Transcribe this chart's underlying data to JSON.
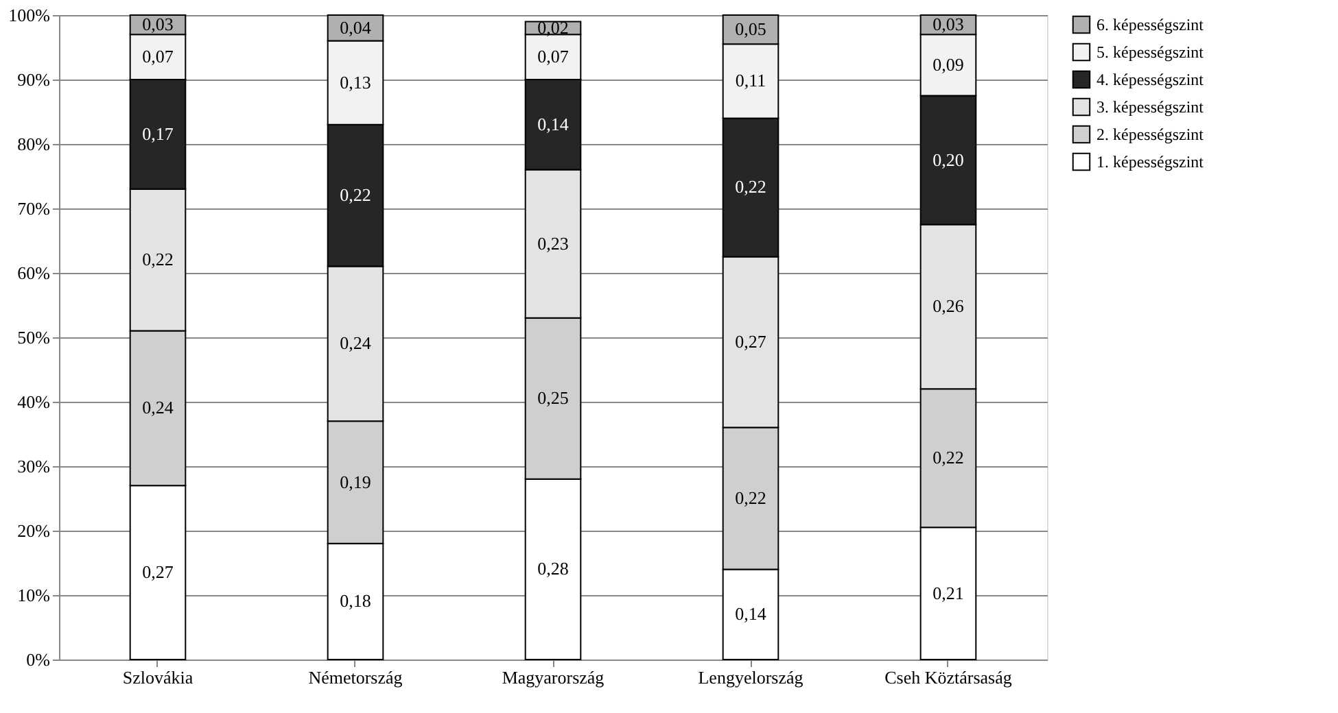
{
  "chart_data": {
    "type": "bar",
    "stacked": true,
    "categories": [
      "Szlovákia",
      "Németország",
      "Magyarország",
      "Lengyelország",
      "Cseh Köztársaság"
    ],
    "series": [
      {
        "name": "1. képességszint",
        "color": "#ffffff",
        "values": [
          0.27,
          0.18,
          0.28,
          0.14,
          0.205
        ],
        "value_labels": [
          "0,27",
          "0,18",
          "0,28",
          "0,14",
          "0,21"
        ]
      },
      {
        "name": "2. képességszint",
        "color": "#cfcfcf",
        "values": [
          0.24,
          0.19,
          0.25,
          0.22,
          0.215
        ],
        "value_labels": [
          "0,24",
          "0,19",
          "0,25",
          "0,22",
          "0,22"
        ]
      },
      {
        "name": "3. képességszint",
        "color": "#e3e3e3",
        "values": [
          0.22,
          0.24,
          0.23,
          0.265,
          0.255
        ],
        "value_labels": [
          "0,22",
          "0,24",
          "0,23",
          "0,27",
          "0,26"
        ]
      },
      {
        "name": "4. képességszint",
        "color": "#262626",
        "values": [
          0.17,
          0.22,
          0.14,
          0.215,
          0.2
        ],
        "value_labels": [
          "0,17",
          "0,22",
          "0,14",
          "0,22",
          "0,20"
        ]
      },
      {
        "name": "5. képességszint",
        "color": "#f2f2f2",
        "values": [
          0.07,
          0.13,
          0.07,
          0.115,
          0.095
        ],
        "value_labels": [
          "0,07",
          "0,13",
          "0,07",
          "0,11",
          "0,09"
        ]
      },
      {
        "name": "6. képességszint",
        "color": "#b0b0b0",
        "values": [
          0.03,
          0.04,
          0.02,
          0.045,
          0.03
        ],
        "value_labels": [
          "0,03",
          "0,04",
          "0,02",
          "0,05",
          "0,03"
        ]
      }
    ],
    "ylim": [
      0,
      1
    ],
    "yticks": [
      {
        "value": 0,
        "label": "0%"
      },
      {
        "value": 0.1,
        "label": "10%"
      },
      {
        "value": 0.2,
        "label": "20%"
      },
      {
        "value": 0.3,
        "label": "30%"
      },
      {
        "value": 0.4,
        "label": "40%"
      },
      {
        "value": 0.5,
        "label": "50%"
      },
      {
        "value": 0.6,
        "label": "60%"
      },
      {
        "value": 0.7,
        "label": "70%"
      },
      {
        "value": 0.8,
        "label": "80%"
      },
      {
        "value": 0.9,
        "label": "90%"
      },
      {
        "value": 1,
        "label": "100%"
      }
    ],
    "grid": "y",
    "legend": "right"
  }
}
